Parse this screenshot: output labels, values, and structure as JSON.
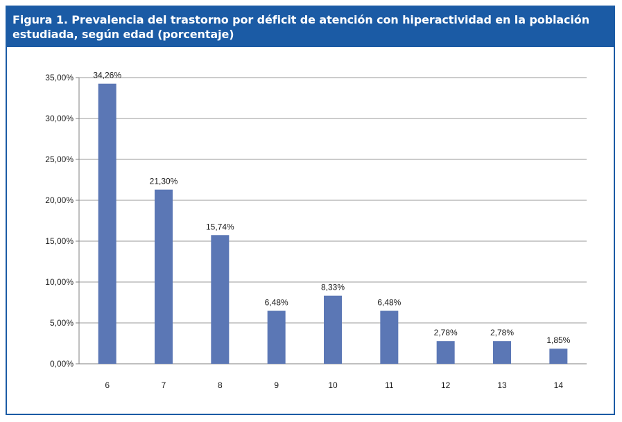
{
  "figure": {
    "title": "Figura 1. Prevalencia del trastorno por déficit de atención con hiperactividad en la población estudiada, según edad (porcentaje)"
  },
  "colors": {
    "frame": "#1b5ba5",
    "bar": "#5b77b5",
    "grid": "#9a9a9a"
  },
  "chart_data": {
    "type": "bar",
    "categories": [
      "6",
      "7",
      "8",
      "9",
      "10",
      "11",
      "12",
      "13",
      "14"
    ],
    "values": [
      34.26,
      21.3,
      15.74,
      6.48,
      8.33,
      6.48,
      2.78,
      2.78,
      1.85
    ],
    "data_labels": [
      "34,26%",
      "21,30%",
      "15,74%",
      "6,48%",
      "8,33%",
      "6,48%",
      "2,78%",
      "2,78%",
      "1,85%"
    ],
    "ylim": [
      0,
      35
    ],
    "yticks": [
      0,
      5,
      10,
      15,
      20,
      25,
      30,
      35
    ],
    "ytick_labels": [
      "0,00%",
      "5,00%",
      "10,00%",
      "15,00%",
      "20,00%",
      "25,00%",
      "30,00%",
      "35,00%"
    ],
    "grid": true,
    "xlabel": "",
    "ylabel": ""
  }
}
